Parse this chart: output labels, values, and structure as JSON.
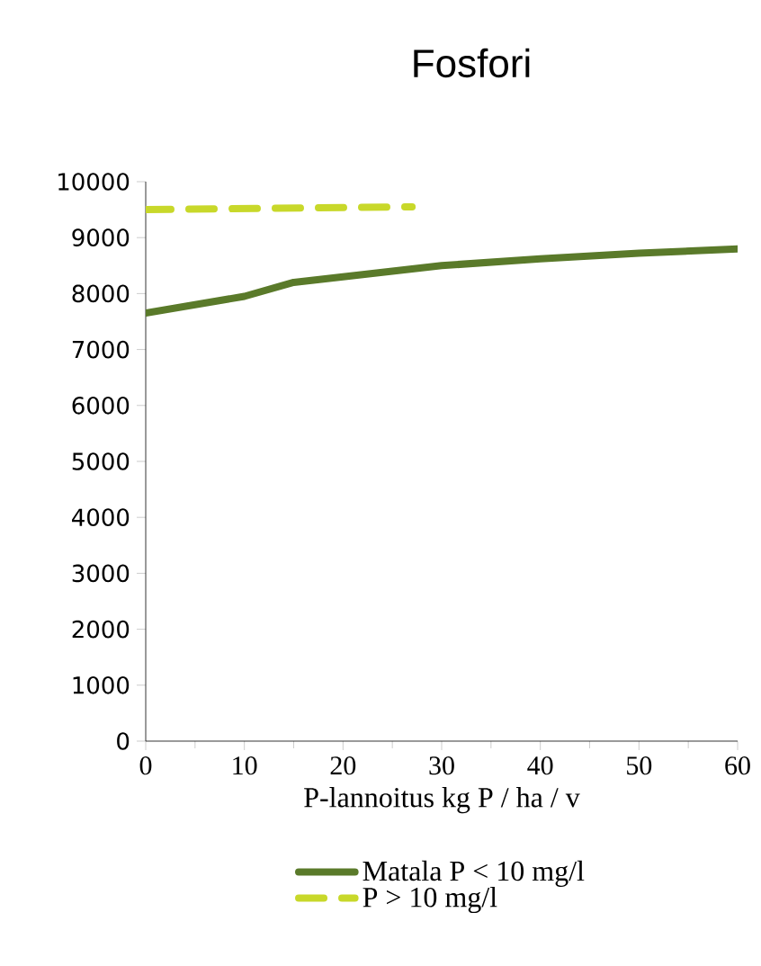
{
  "chart_data": {
    "type": "line",
    "title": "Fosfori",
    "xlabel": "P-lannoitus  kg P / ha / v",
    "xlim": [
      0,
      60
    ],
    "xticks": [
      0,
      10,
      20,
      30,
      40,
      50,
      60
    ],
    "ylim": [
      0,
      10000
    ],
    "yticks": [
      0,
      1000,
      2000,
      3000,
      4000,
      5000,
      6000,
      7000,
      8000,
      9000,
      10000
    ],
    "grid": false,
    "legend": "bottom",
    "series": [
      {
        "name": "Matala P < 10 mg/l",
        "color": "#5a7a2a",
        "line_style": "solid",
        "x": [
          0,
          10,
          15,
          20,
          30,
          40,
          50,
          60
        ],
        "values": [
          7650,
          7950,
          8200,
          8300,
          8500,
          8620,
          8720,
          8800
        ]
      },
      {
        "name": "P > 10 mg/l",
        "color": "#c8d82a",
        "line_style": "dashed",
        "x": [
          0,
          27
        ],
        "values": [
          9500,
          9550
        ]
      }
    ]
  }
}
